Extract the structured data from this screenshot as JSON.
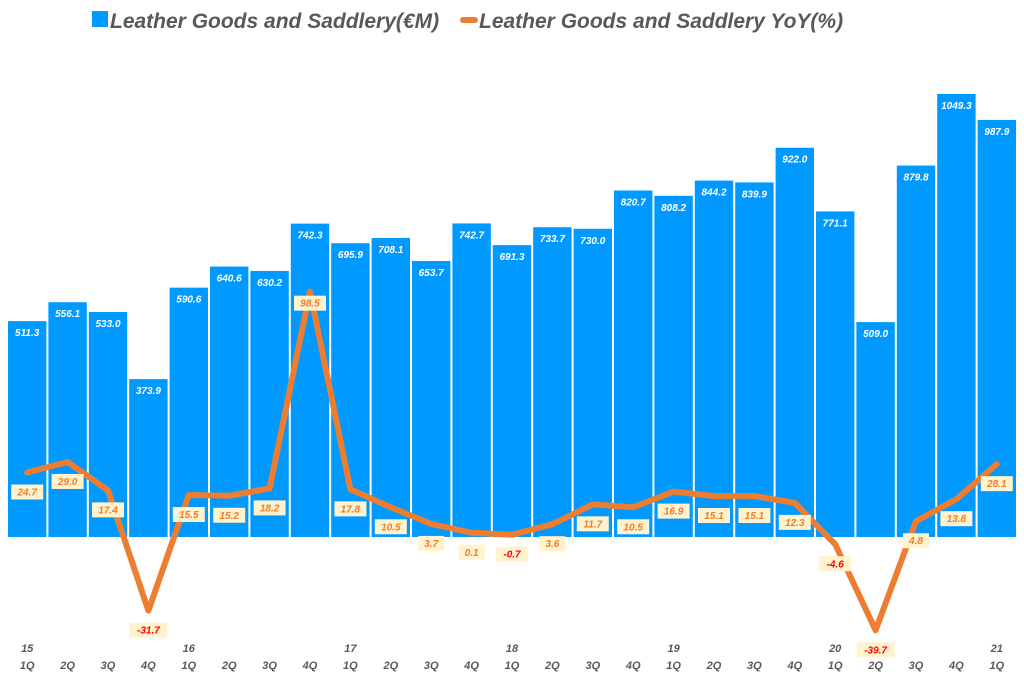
{
  "chart_data": {
    "type": "bar+line",
    "title": "",
    "legend": {
      "position": "top",
      "entries": [
        "Leather Goods and Saddlery(€M)",
        "Leather Goods and Saddlery YoY(%)"
      ]
    },
    "categories": [
      "1Q",
      "2Q",
      "3Q",
      "4Q",
      "1Q",
      "2Q",
      "3Q",
      "4Q",
      "1Q",
      "2Q",
      "3Q",
      "4Q",
      "1Q",
      "2Q",
      "3Q",
      "4Q",
      "1Q",
      "2Q",
      "3Q",
      "4Q",
      "1Q",
      "2Q",
      "3Q",
      "4Q",
      "1Q"
    ],
    "years": [
      "15",
      "",
      "",
      "",
      "16",
      "",
      "",
      "",
      "17",
      "",
      "",
      "",
      "18",
      "",
      "",
      "",
      "19",
      "",
      "",
      "",
      "20",
      "",
      "",
      "",
      "21"
    ],
    "series": [
      {
        "name": "Leather Goods and Saddlery(€M)",
        "type": "bar",
        "color": "#0099FF",
        "values": [
          511.3,
          556.1,
          533.0,
          373.9,
          590.6,
          640.6,
          630.2,
          742.3,
          695.9,
          708.1,
          653.7,
          742.7,
          691.3,
          733.7,
          730.0,
          820.7,
          808.2,
          844.2,
          839.9,
          922.0,
          771.1,
          509.0,
          879.8,
          1049.3,
          987.9
        ]
      },
      {
        "name": "Leather Goods and Saddlery YoY(%)",
        "type": "line",
        "color": "#ED7D31",
        "values": [
          24.7,
          29.0,
          17.4,
          -31.7,
          15.5,
          15.2,
          18.2,
          98.5,
          17.8,
          10.5,
          3.7,
          0.1,
          -0.7,
          3.6,
          11.7,
          10.5,
          16.9,
          15.1,
          15.1,
          12.3,
          -4.6,
          -39.7,
          4.8,
          13.8,
          28.1
        ]
      }
    ],
    "label_colors": {
      "positive": "#ED7D31",
      "negative": "#FF0000",
      "label_bg": "#FFF2CC"
    },
    "ylim_bar": [
      0,
      1250
    ],
    "grid": false
  }
}
